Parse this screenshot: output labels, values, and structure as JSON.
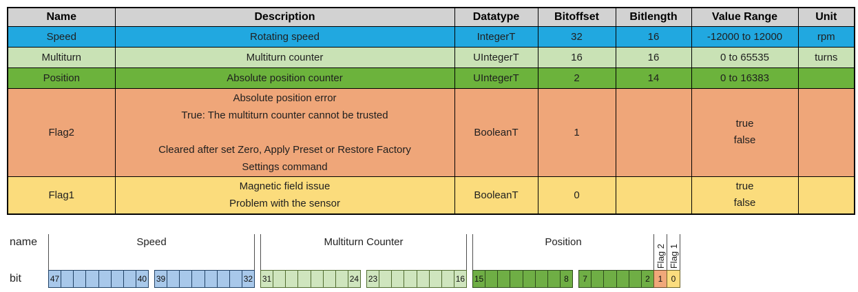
{
  "table": {
    "columns": [
      "Name",
      "Description",
      "Datatype",
      "Bitoffset",
      "Bitlength",
      "Value Range",
      "Unit"
    ],
    "rows": [
      {
        "name": "Speed",
        "description": "Rotating speed",
        "datatype": "IntegerT",
        "bitoffset": "32",
        "bitlength": "16",
        "value_range": "-12000 to 12000",
        "unit": "rpm",
        "color": "#21a8e0"
      },
      {
        "name": "Multiturn",
        "description": "Multiturn counter",
        "datatype": "UIntegerT",
        "bitoffset": "16",
        "bitlength": "16",
        "value_range": "0 to 65535",
        "unit": "turns",
        "color": "#c9e2b5"
      },
      {
        "name": "Position",
        "description": "Absolute position counter",
        "datatype": "UIntegerT",
        "bitoffset": "2",
        "bitlength": "14",
        "value_range": "0 to 16383",
        "unit": "",
        "color": "#6cb33c"
      },
      {
        "name": "Flag2",
        "description": "Absolute position error\nTrue: The multiturn counter cannot be trusted\n\nCleared after set Zero, Apply Preset or Restore Factory\nSettings command",
        "datatype": "BooleanT",
        "bitoffset": "1",
        "bitlength": "",
        "value_range": "true\nfalse",
        "unit": "",
        "color": "#efa679"
      },
      {
        "name": "Flag1",
        "description": "Magnetic field issue\nProblem with the sensor",
        "datatype": "BooleanT",
        "bitoffset": "0",
        "bitlength": "",
        "value_range": "true\nfalse",
        "unit": "",
        "color": "#fbdc7c"
      }
    ],
    "header_bg": "#d2d2d2"
  },
  "diagram": {
    "axis_labels": {
      "name": "name",
      "bit": "bit"
    },
    "sections": [
      {
        "label": "Speed",
        "rotated": false,
        "gap_before": false,
        "fused": false,
        "fill": "#a8c8ea",
        "edge": "#1f4064",
        "groups": [
          [
            "47",
            "",
            "",
            "",
            "",
            "",
            "",
            "40"
          ],
          [
            "39",
            "",
            "",
            "",
            "",
            "",
            "",
            "32"
          ]
        ]
      },
      {
        "label": "Multiturn Counter",
        "rotated": false,
        "gap_before": true,
        "fused": false,
        "fill": "#cfe5be",
        "edge": "#4f6a2e",
        "groups": [
          [
            "31",
            "",
            "",
            "",
            "",
            "",
            "",
            "24"
          ],
          [
            "23",
            "",
            "",
            "",
            "",
            "",
            "",
            "16"
          ]
        ]
      },
      {
        "label": "Position",
        "rotated": false,
        "gap_before": true,
        "fused": false,
        "fill": "#6fae45",
        "edge": "#2e4b1b",
        "groups": [
          [
            "15",
            "",
            "",
            "",
            "",
            "",
            "",
            "8"
          ],
          [
            "7",
            "",
            "",
            "",
            "",
            "2"
          ]
        ]
      },
      {
        "label": "Flag 2",
        "rotated": true,
        "gap_before": false,
        "fused": true,
        "fill": "#f0a87a",
        "edge": "#6e4a26",
        "groups": [
          [
            "1"
          ]
        ]
      },
      {
        "label": "Flag 1",
        "rotated": true,
        "gap_before": false,
        "fused": true,
        "fill": "#fbdd7e",
        "edge": "#6e652a",
        "groups": [
          [
            "0"
          ]
        ]
      }
    ]
  }
}
